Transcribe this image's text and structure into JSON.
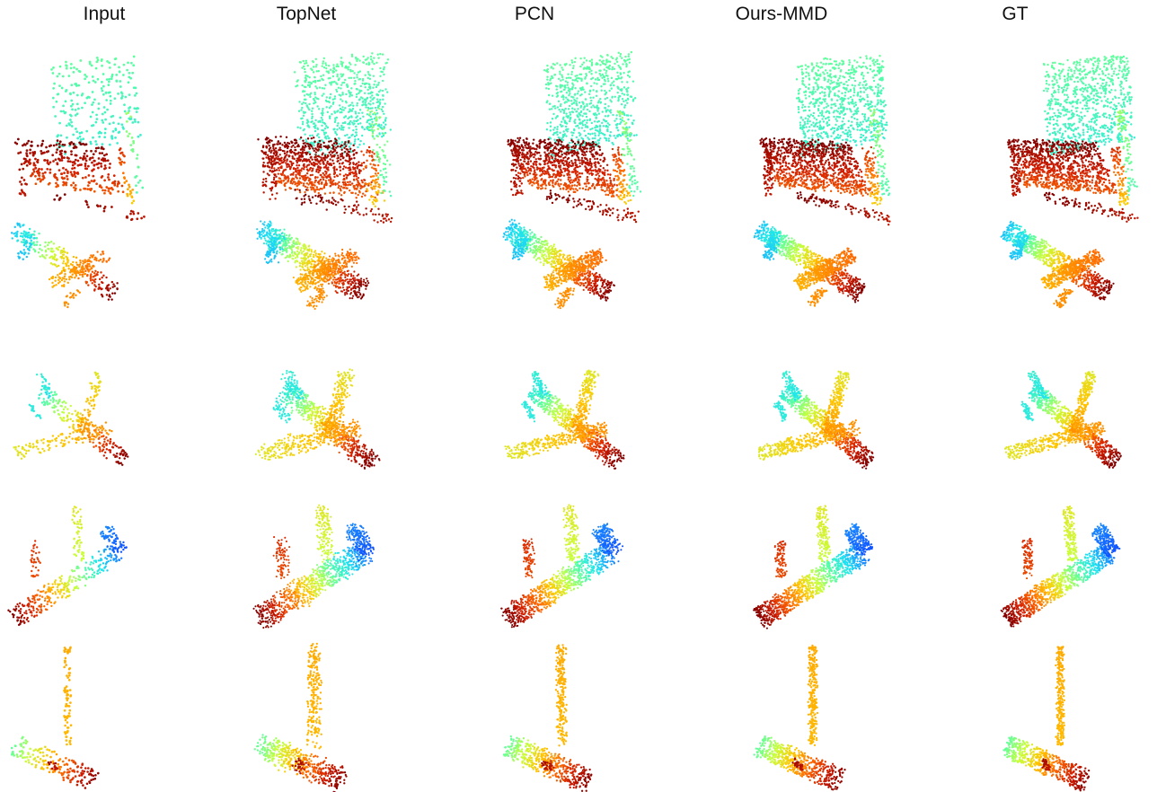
{
  "columns": [
    {
      "title": "Input"
    },
    {
      "title": "TopNet"
    },
    {
      "title": "PCN"
    },
    {
      "title": "Ours-MMD"
    },
    {
      "title": "GT"
    }
  ],
  "rows": [
    {
      "shape": "chair"
    },
    {
      "shape": "airplane"
    },
    {
      "shape": "airplane"
    },
    {
      "shape": "airplane-tail-view"
    },
    {
      "shape": "lamp"
    }
  ],
  "colormap": [
    "#7f0000",
    "#d01c00",
    "#ff6a00",
    "#ffc400",
    "#c8ff3c",
    "#5cffa0",
    "#1ee4f0",
    "#1a8cff",
    "#0a2cff"
  ]
}
